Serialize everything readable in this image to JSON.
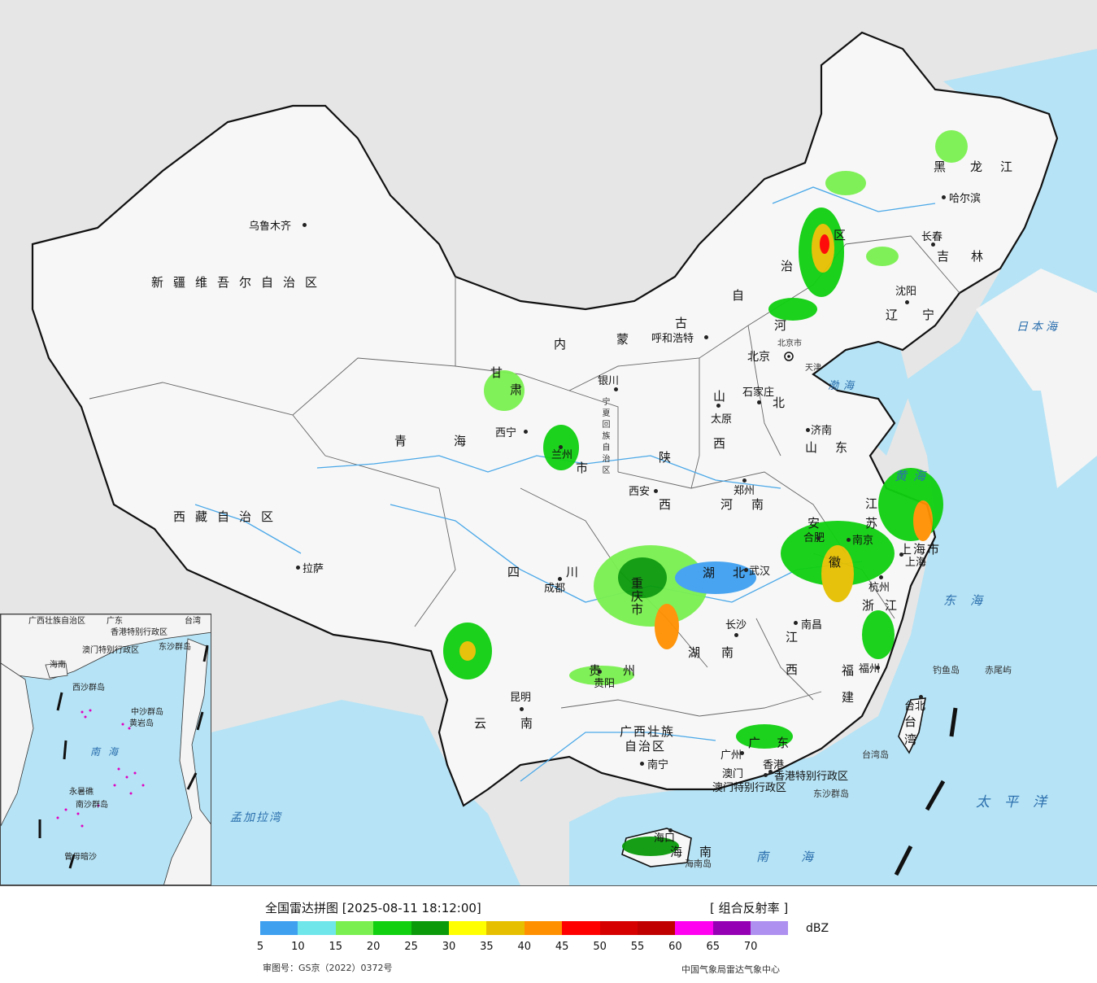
{
  "map": {
    "provinces": {
      "xinjiang": "新疆维吾尔自治区",
      "xizang": "西藏自治区",
      "qinghai_1": "青",
      "qinghai_2": "海",
      "gansu": "甘",
      "sichuan_1": "四",
      "sichuan_2": "川",
      "yunnan_1": "云",
      "yunnan_2": "南",
      "neimenggu_1": "内",
      "neimenggu_2": "蒙",
      "neimenggu_3": "古",
      "neimenggu_4": "自",
      "neimenggu_5": "治",
      "neimenggu_6": "区",
      "heilongjiang_1": "黑",
      "heilongjiang_2": "龙",
      "heilongjiang_3": "江",
      "jilin_1": "吉",
      "jilin_2": "林",
      "liaoning_1": "辽",
      "liaoning_2": "宁",
      "hebei_1": "河",
      "hebei_2": "北",
      "shanxi_1": "山",
      "shanxi_2": "西",
      "shandong_1": "山",
      "shandong_2": "东",
      "shaanxi_1": "陕",
      "shaanxi_2": "西",
      "henan_1": "河",
      "henan_2": "南",
      "hubei_1": "湖",
      "hubei_2": "北",
      "hunan_1": "湖",
      "hunan_2": "南",
      "jiangxi_1": "江",
      "jiangxi_2": "西",
      "anhui_1": "安",
      "anhui_2": "徽",
      "jiangsu_1": "江",
      "jiangsu_2": "苏",
      "zhejiang_1": "浙",
      "zhejiang_2": "江",
      "fujian_1": "福",
      "fujian_2": "建",
      "guangdong_1": "广",
      "guangdong_2": "东",
      "guangxi_1": "广西壮族",
      "guangxi_2": "自治区",
      "guizhou_1": "贵",
      "guizhou_2": "州",
      "chongqing_1": "重",
      "chongqing_2": "庆",
      "chongqing_3": "市",
      "ningxia": "宁夏回族自治区",
      "shanghai": "上海市",
      "hainan_1": "海",
      "hainan_2": "南",
      "taiwan_1": "台",
      "taiwan_2": "湾",
      "hk": "香港特别行政区",
      "macau": "澳门特别行政区",
      "beijing": "北京市",
      "tianjin": "天津",
      "beijing_city": "北京",
      "gansu_2": "肃",
      "lanzhou_shi": "市"
    },
    "cities": [
      {
        "key": "urumqi",
        "name": "乌鲁木齐"
      },
      {
        "key": "lhasa",
        "name": "拉萨"
      },
      {
        "key": "xining",
        "name": "西宁"
      },
      {
        "key": "lanzhou",
        "name": "兰州"
      },
      {
        "key": "yinchuan",
        "name": "银川"
      },
      {
        "key": "hohhot",
        "name": "呼和浩特"
      },
      {
        "key": "harbin",
        "name": "哈尔滨"
      },
      {
        "key": "changchun",
        "name": "长春"
      },
      {
        "key": "shenyang",
        "name": "沈阳"
      },
      {
        "key": "shijiazhuang",
        "name": "石家庄"
      },
      {
        "key": "taiyuan",
        "name": "太原"
      },
      {
        "key": "jinan",
        "name": "济南"
      },
      {
        "key": "xian",
        "name": "西安"
      },
      {
        "key": "zhengzhou",
        "name": "郑州"
      },
      {
        "key": "chengdu",
        "name": "成都"
      },
      {
        "key": "wuhan",
        "name": "武汉"
      },
      {
        "key": "hefei",
        "name": "合肥"
      },
      {
        "key": "nanjing",
        "name": "南京"
      },
      {
        "key": "shanghai_city",
        "name": "上海"
      },
      {
        "key": "hangzhou",
        "name": "杭州"
      },
      {
        "key": "nanchang",
        "name": "南昌"
      },
      {
        "key": "changsha",
        "name": "长沙"
      },
      {
        "key": "guiyang",
        "name": "贵阳"
      },
      {
        "key": "kunming",
        "name": "昆明"
      },
      {
        "key": "nanning",
        "name": "南宁"
      },
      {
        "key": "guangzhou",
        "name": "广州"
      },
      {
        "key": "fuzhou",
        "name": "福州"
      },
      {
        "key": "taibei",
        "name": "台北"
      },
      {
        "key": "haikou",
        "name": "海口"
      },
      {
        "key": "aomen",
        "name": "澳门"
      },
      {
        "key": "xianggang",
        "name": "香港"
      }
    ],
    "seas": {
      "japan_sea": "日本海",
      "bohai": "渤海",
      "yellow_sea": "黄海",
      "east_sea": "东海",
      "pacific": "太平洋",
      "south_sea": "南海",
      "bengal": "孟加拉湾"
    },
    "islands": {
      "diaoyu": "钓鱼岛",
      "chiwei": "赤尾屿",
      "taiwan_isl": "台湾岛",
      "dongsha": "东沙群岛",
      "hainan_isl": "海南岛"
    }
  },
  "inset": {
    "labels": {
      "guangxi": "广西壮族自治区",
      "guangdong": "广东",
      "taiwan": "台湾",
      "hk": "香港特别行政区",
      "macau": "澳门特别行政区",
      "dongsha": "东沙群岛",
      "xisha": "西沙群岛",
      "zhongsha": "中沙群岛",
      "huangyan": "黄岩岛",
      "nansha": "南沙群岛",
      "zengmu": "曾母暗沙",
      "yongshu": "永暑礁",
      "hainan": "海南"
    },
    "sea": "南海"
  },
  "legend": {
    "title": "全国雷达拼图 [2025-08-11 18:12:00]",
    "product": "[ 组合反射率 ]",
    "unit": "dBZ",
    "ticks": [
      "5",
      "10",
      "15",
      "20",
      "25",
      "30",
      "35",
      "40",
      "45",
      "50",
      "55",
      "60",
      "65",
      "70"
    ],
    "colors": [
      "#3fa0f0",
      "#6ee6ea",
      "#7af050",
      "#10d010",
      "#0a9a0a",
      "#ffff00",
      "#e6c000",
      "#ff9000",
      "#ff0000",
      "#d60000",
      "#c00000",
      "#ff00f0",
      "#9600b4",
      "#ae90f0"
    ],
    "approval": "审图号：GS京（2022）0372号",
    "agency": "中国气象局雷达气象中心"
  }
}
